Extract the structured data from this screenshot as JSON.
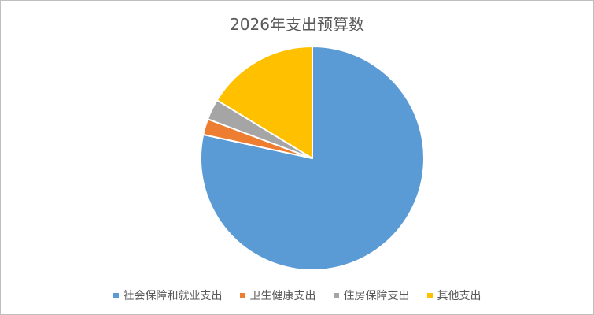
{
  "chart_data": {
    "type": "pie",
    "title": "2026年支出预算数",
    "categories": [
      "社会保障和就业支出",
      "卫生健康支出",
      "住房保障支出",
      "其他支出"
    ],
    "values": [
      78.4,
      2.3,
      3.0,
      16.3
    ],
    "colors": [
      "#5B9BD5",
      "#ED7D31",
      "#A5A5A5",
      "#FFC000"
    ],
    "legend_position": "bottom",
    "start_angle": "12 o'clock",
    "direction": "clockwise"
  }
}
